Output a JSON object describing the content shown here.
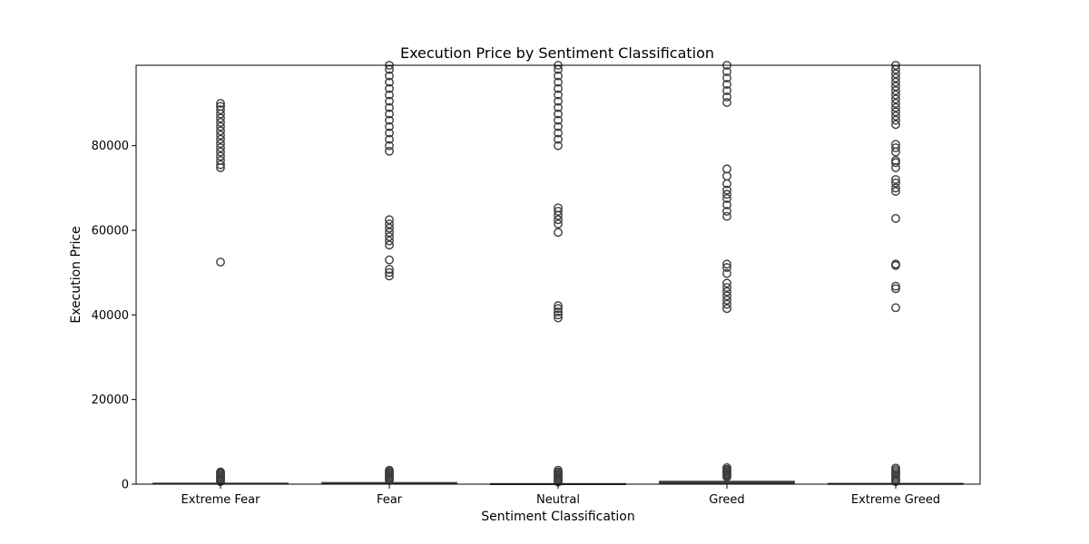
{
  "chart_data": {
    "type": "box",
    "title": "Execution Price by Sentiment Classification",
    "xlabel": "Sentiment Classification",
    "ylabel": "Execution Price",
    "ylim": [
      0,
      99000
    ],
    "yticks": [
      0,
      20000,
      40000,
      60000,
      80000
    ],
    "ytick_labels": [
      "0",
      "20000",
      "40000",
      "60000",
      "80000"
    ],
    "grid": false,
    "color": "#3d3d3d",
    "categories": [
      "Extreme Fear",
      "Fear",
      "Neutral",
      "Greed",
      "Extreme Greed"
    ],
    "boxes": [
      {
        "category": "Extreme Fear",
        "q1": 20,
        "median": 60,
        "q3": 250,
        "whisker_low": 0,
        "whisker_high": 500,
        "outliers": [
          600,
          900,
          1200,
          1500,
          1800,
          2100,
          2400,
          2700,
          2900,
          52500,
          74800,
          75500,
          76500,
          77500,
          78500,
          79500,
          80500,
          81500,
          82500,
          83500,
          84500,
          85500,
          86500,
          87500,
          88500,
          89300,
          90000
        ]
      },
      {
        "category": "Fear",
        "q1": 20,
        "median": 100,
        "q3": 400,
        "whisker_low": 0,
        "whisker_high": 800,
        "outliers": [
          900,
          1200,
          1500,
          1800,
          2100,
          2400,
          2700,
          3000,
          3300,
          49200,
          50000,
          50800,
          53000,
          56500,
          57500,
          58500,
          59500,
          60500,
          61500,
          62500,
          78700,
          80000,
          81500,
          83000,
          84500,
          86000,
          87500,
          89000,
          90500,
          92000,
          93500,
          95000,
          96500,
          98000,
          99000
        ]
      },
      {
        "category": "Neutral",
        "q1": 15,
        "median": 50,
        "q3": 150,
        "whisker_low": 0,
        "whisker_high": 300,
        "outliers": [
          500,
          800,
          1100,
          1400,
          1700,
          2000,
          2300,
          2600,
          2900,
          3300,
          39300,
          40000,
          40700,
          41500,
          42200,
          59500,
          61500,
          62500,
          63500,
          64500,
          65300,
          80000,
          81500,
          83000,
          84500,
          86000,
          87500,
          89000,
          90500,
          92000,
          93500,
          95000,
          96500,
          98000,
          99000
        ]
      },
      {
        "category": "Greed",
        "q1": 40,
        "median": 200,
        "q3": 700,
        "whisker_low": 0,
        "whisker_high": 1500,
        "outliers": [
          1700,
          2000,
          2300,
          2600,
          2900,
          3200,
          3500,
          3900,
          41500,
          42500,
          43500,
          44500,
          45500,
          46500,
          47500,
          49800,
          51200,
          52000,
          63300,
          64500,
          66000,
          67500,
          68500,
          69500,
          71000,
          72800,
          74500,
          90200,
          91500,
          93000,
          94500,
          96000,
          97500,
          99000
        ]
      },
      {
        "category": "Extreme Greed",
        "q1": 15,
        "median": 60,
        "q3": 200,
        "whisker_low": 0,
        "whisker_high": 400,
        "outliers": [
          600,
          1000,
          1400,
          1800,
          2200,
          2600,
          3000,
          3400,
          3800,
          41700,
          46200,
          46800,
          51700,
          52000,
          62800,
          69200,
          70000,
          71200,
          72000,
          74800,
          76000,
          76500,
          78500,
          79500,
          80300,
          85000,
          86000,
          87000,
          88000,
          89000,
          90000,
          91000,
          92000,
          93000,
          94000,
          95000,
          96000,
          97000,
          98000,
          99000
        ]
      }
    ]
  }
}
